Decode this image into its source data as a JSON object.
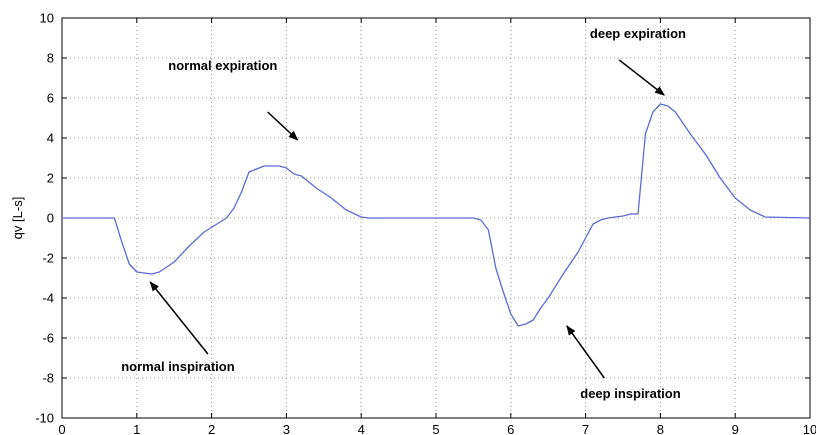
{
  "chart_data": {
    "type": "line",
    "title": "",
    "xlabel": "",
    "ylabel": "qv [L-s]",
    "xlim": [
      0,
      10
    ],
    "ylim": [
      -10,
      10
    ],
    "xticks": [
      0,
      1,
      2,
      3,
      4,
      5,
      6,
      7,
      8,
      9,
      10
    ],
    "yticks": [
      -10,
      -8,
      -6,
      -4,
      -2,
      0,
      2,
      4,
      6,
      8,
      10
    ],
    "grid": true,
    "line_color": "#5b6bd5",
    "series": [
      {
        "x": [
          0,
          0.7,
          0.8,
          0.9,
          1.0,
          1.2,
          1.3,
          1.5,
          1.7,
          1.9,
          2.2,
          2.3,
          2.4,
          2.5,
          2.7,
          2.9,
          3.0,
          3.1,
          3.2,
          3.4,
          3.6,
          3.8,
          4.0,
          4.1,
          5.5,
          5.6,
          5.7,
          5.8,
          5.9,
          6.0,
          6.1,
          6.2,
          6.3,
          6.4,
          6.5,
          6.7,
          6.9,
          7.0,
          7.1,
          7.2,
          7.3,
          7.5,
          7.6,
          7.7,
          7.8,
          7.9,
          8.0,
          8.1,
          8.2,
          8.4,
          8.6,
          8.8,
          9.0,
          9.2,
          9.4,
          10.0
        ],
        "y": [
          0,
          0,
          -1.2,
          -2.3,
          -2.7,
          -2.8,
          -2.7,
          -2.2,
          -1.4,
          -0.7,
          0,
          0.5,
          1.3,
          2.3,
          2.6,
          2.6,
          2.5,
          2.2,
          2.1,
          1.5,
          1.0,
          0.4,
          0.05,
          0,
          0,
          -0.1,
          -0.6,
          -2.5,
          -3.7,
          -4.8,
          -5.4,
          -5.3,
          -5.1,
          -4.5,
          -4.0,
          -2.8,
          -1.7,
          -1.0,
          -0.3,
          -0.1,
          0,
          0.1,
          0.2,
          0.2,
          4.2,
          5.3,
          5.7,
          5.6,
          5.3,
          4.2,
          3.2,
          2.0,
          1.0,
          0.4,
          0.05,
          0
        ]
      }
    ],
    "annotations": [
      {
        "text": "normal expiration",
        "text_x": 2.15,
        "text_y": 7.4,
        "arrow_from": [
          2.75,
          5.3
        ],
        "arrow_to": [
          3.15,
          3.9
        ]
      },
      {
        "text": "normal inspiration",
        "text_x": 1.55,
        "text_y": -7.65,
        "arrow_from": [
          1.95,
          -6.8
        ],
        "arrow_to": [
          1.18,
          -3.2
        ]
      },
      {
        "text": "deep expiration",
        "text_x": 7.7,
        "text_y": 9.0,
        "arrow_from": [
          7.45,
          7.9
        ],
        "arrow_to": [
          8.05,
          6.15
        ]
      },
      {
        "text": "deep inspiration",
        "text_x": 7.6,
        "text_y": -9.0,
        "arrow_from": [
          7.25,
          -8.0
        ],
        "arrow_to": [
          6.75,
          -5.4
        ]
      }
    ]
  }
}
